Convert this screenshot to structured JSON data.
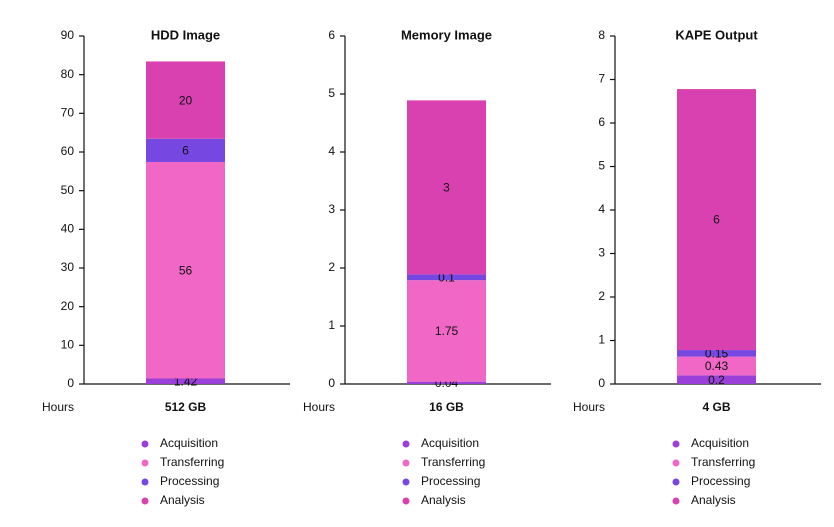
{
  "chart_data": [
    {
      "type": "bar",
      "title": "HDD Image",
      "x_label": "Hours",
      "categories": [
        "512 GB"
      ],
      "ylim": [
        0,
        90
      ],
      "yticks": [
        0,
        10,
        20,
        30,
        40,
        50,
        60,
        70,
        80,
        90
      ],
      "stacked": true,
      "series": [
        {
          "name": "Acquisition",
          "color": "#9a3fd8",
          "values": [
            1.42
          ]
        },
        {
          "name": "Transferring",
          "color": "#f067c6",
          "values": [
            56
          ]
        },
        {
          "name": "Processing",
          "color": "#7747e2",
          "values": [
            6
          ]
        },
        {
          "name": "Analysis",
          "color": "#d940b0",
          "values": [
            20
          ]
        }
      ]
    },
    {
      "type": "bar",
      "title": "Memory Image",
      "x_label": "Hours",
      "categories": [
        "16 GB"
      ],
      "ylim": [
        0,
        6
      ],
      "yticks": [
        0,
        1,
        2,
        3,
        4,
        5,
        6
      ],
      "stacked": true,
      "series": [
        {
          "name": "Acquisition",
          "color": "#9a3fd8",
          "values": [
            0.04
          ]
        },
        {
          "name": "Transferring",
          "color": "#f067c6",
          "values": [
            1.75
          ]
        },
        {
          "name": "Processing",
          "color": "#7747e2",
          "values": [
            0.1
          ]
        },
        {
          "name": "Analysis",
          "color": "#d940b0",
          "values": [
            3
          ]
        }
      ]
    },
    {
      "type": "bar",
      "title": "KAPE Output",
      "x_label": "Hours",
      "categories": [
        "4 GB"
      ],
      "ylim": [
        0,
        8
      ],
      "yticks": [
        0,
        1,
        2,
        3,
        4,
        5,
        6,
        7,
        8
      ],
      "stacked": true,
      "series": [
        {
          "name": "Acquisition",
          "color": "#9a3fd8",
          "values": [
            0.2
          ]
        },
        {
          "name": "Transferring",
          "color": "#f067c6",
          "values": [
            0.43
          ]
        },
        {
          "name": "Processing",
          "color": "#7747e2",
          "values": [
            0.15
          ]
        },
        {
          "name": "Analysis",
          "color": "#d940b0",
          "values": [
            6
          ]
        }
      ]
    }
  ]
}
